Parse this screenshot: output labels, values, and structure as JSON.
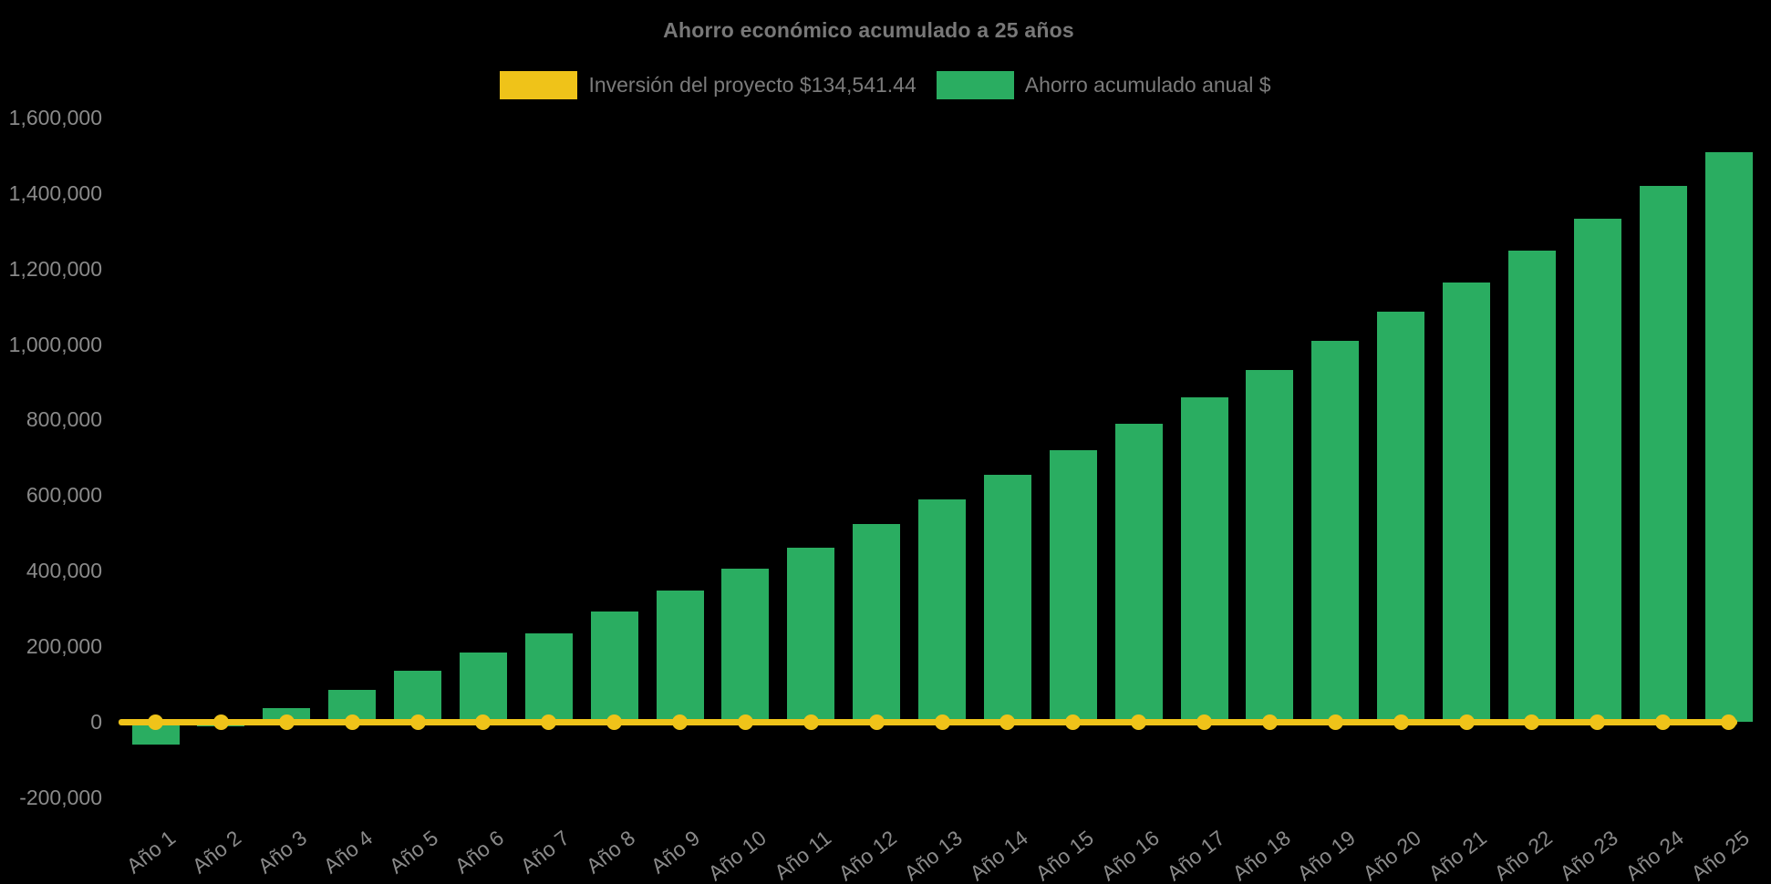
{
  "title": "Ahorro económico acumulado a 25 años",
  "legend": {
    "items": [
      {
        "label": "Inversión del proyecto $134,541.44",
        "color": "#efc319",
        "series": "investment-line"
      },
      {
        "label": "Ahorro acumulado anual $",
        "color": "#2aad61",
        "series": "savings-bars"
      }
    ]
  },
  "chart_data": {
    "type": "bar",
    "title": "Ahorro económico acumulado a 25 años",
    "categories": [
      "Año 1",
      "Año 2",
      "Año 3",
      "Año 4",
      "Año 5",
      "Año 6",
      "Año 7",
      "Año 8",
      "Año 9",
      "Año 10",
      "Año 11",
      "Año 12",
      "Año 13",
      "Año 14",
      "Año 15",
      "Año 16",
      "Año 17",
      "Año 18",
      "Año 19",
      "Año 20",
      "Año 21",
      "Año 22",
      "Año 23",
      "Año 24",
      "Año 25"
    ],
    "series": [
      {
        "name": "Ahorro acumulado anual $",
        "type": "bar",
        "color": "#2aad61",
        "values": [
          -58000,
          -10000,
          38000,
          85000,
          136000,
          185000,
          235000,
          293000,
          348000,
          406000,
          463000,
          525000,
          589000,
          655000,
          721000,
          790000,
          860000,
          932000,
          1009000,
          1087000,
          1164000,
          1248000,
          1333000,
          1420000,
          1508000
        ]
      },
      {
        "name": "Inversión del proyecto $134,541.44",
        "type": "line",
        "color": "#efc319",
        "investment_amount": 134541.44,
        "plotted_y_value": 0,
        "marker": "circle"
      }
    ],
    "xlabel": "",
    "ylabel": "",
    "ylim": [
      -200000,
      1600000
    ],
    "ytick_step": 200000,
    "ytick_labels": [
      "-200,000",
      "0",
      "200,000",
      "400,000",
      "600,000",
      "800,000",
      "1,000,000",
      "1,200,000",
      "1,400,000",
      "1,600,000"
    ],
    "grid": false,
    "legend_position": "top-center",
    "background": "#000000"
  }
}
